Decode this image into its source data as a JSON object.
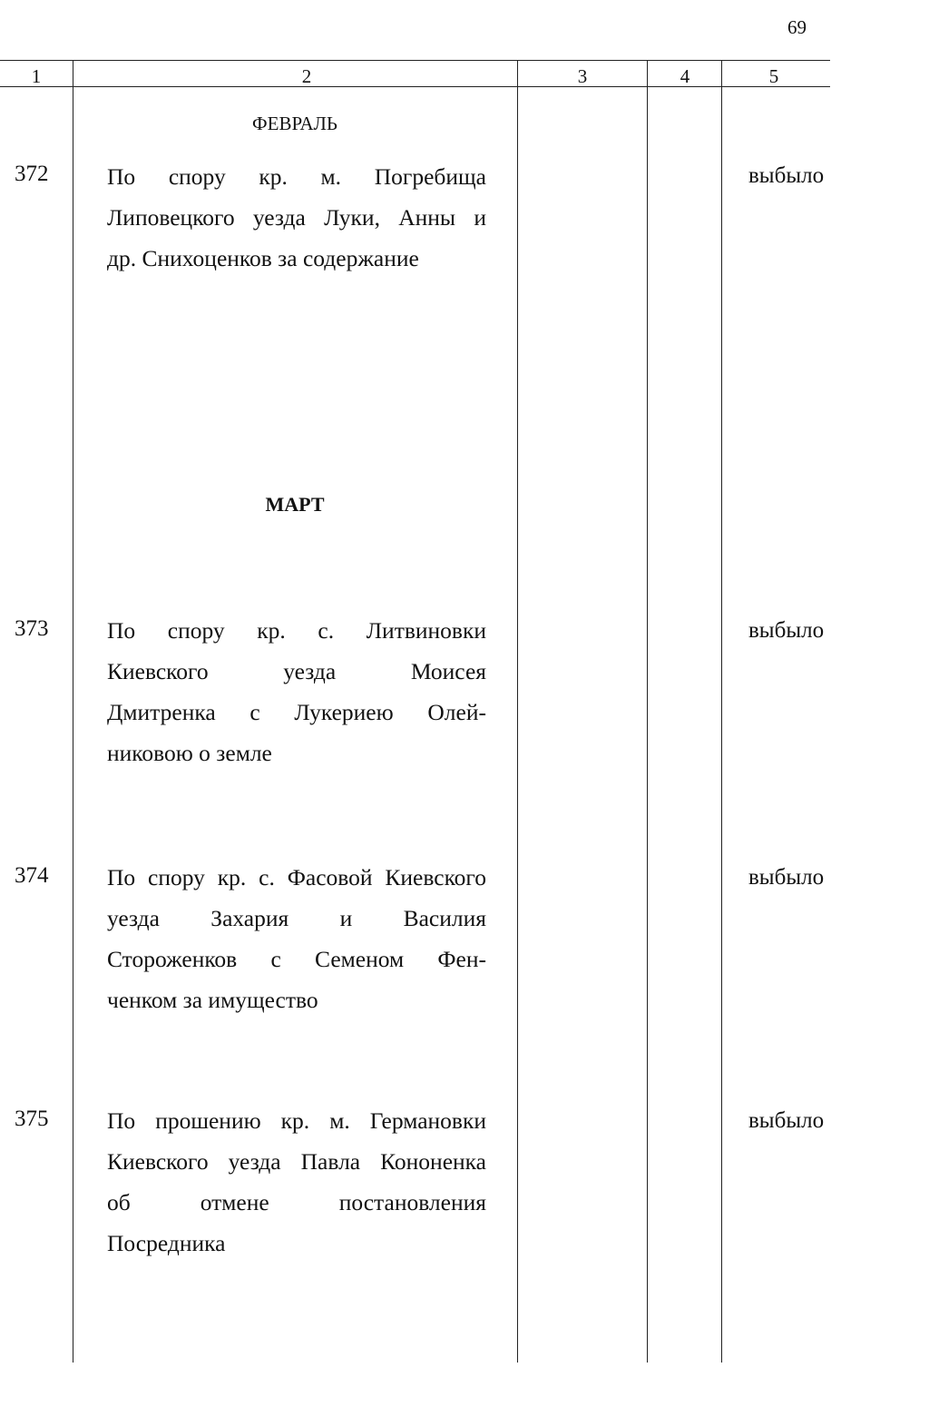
{
  "page_number": "69",
  "columns": [
    "1",
    "2",
    "3",
    "4",
    "5"
  ],
  "sections": [
    {
      "month": "ФЕВРАЛЬ"
    },
    {
      "month": "МАРТ"
    }
  ],
  "entries": [
    {
      "number": "372",
      "lines": [
        "По спору кр. м. Погребища",
        "Липовецкого уезда Луки, Анны и",
        "др. Снихоценков за содержание"
      ],
      "status": "выбыло"
    },
    {
      "number": "373",
      "lines": [
        "По спору кр. с. Литвиновки",
        "Киевского уезда Моисея",
        "Дмитренка с Лукериею Олей-",
        "никовою о земле"
      ],
      "status": "выбыло"
    },
    {
      "number": "374",
      "lines": [
        "По спору кр. с. Фасовой Киевского",
        "уезда Захария и Василия",
        "Стороженков с Семеном Фен-",
        "ченком за имущество"
      ],
      "status": "выбыло"
    },
    {
      "number": "375",
      "lines": [
        "По прошению кр. м. Германовки",
        "Киевского уезда Павла Кононенка",
        "об отмене постановления",
        "Посредника"
      ],
      "status": "выбыло"
    }
  ]
}
